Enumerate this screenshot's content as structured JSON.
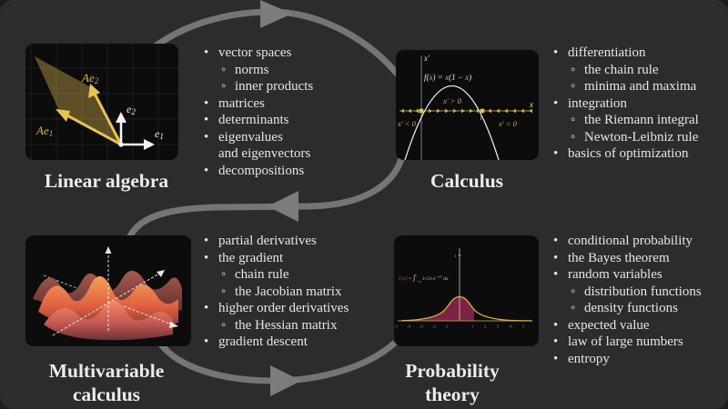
{
  "slide": {
    "background": "#2c2c2c",
    "outer_background": "#1c1c1c",
    "arrow_color": "#757575",
    "accent_gold": "#d9b24a",
    "shade_maroon": "#7c2342"
  },
  "glyphs": {
    "bullet": "•",
    "sub_bullet": "◦"
  },
  "sections": [
    {
      "id": "linear-algebra",
      "title": "Linear algebra",
      "items": [
        {
          "level": 1,
          "text": "vector spaces"
        },
        {
          "level": 2,
          "text": "norms"
        },
        {
          "level": 2,
          "text": "inner products"
        },
        {
          "level": 1,
          "text": "matrices"
        },
        {
          "level": 1,
          "text": "determinants"
        },
        {
          "level": 1,
          "text": "eigenvalues\nand eigenvectors"
        },
        {
          "level": 1,
          "text": "decompositions"
        }
      ]
    },
    {
      "id": "calculus",
      "title": "Calculus",
      "items": [
        {
          "level": 1,
          "text": "differentiation"
        },
        {
          "level": 2,
          "text": "the chain rule"
        },
        {
          "level": 2,
          "text": "minima and maxima"
        },
        {
          "level": 1,
          "text": "integration"
        },
        {
          "level": 2,
          "text": "the Riemann integral"
        },
        {
          "level": 2,
          "text": "Newton-Leibniz rule"
        },
        {
          "level": 1,
          "text": "basics of optimization"
        }
      ]
    },
    {
      "id": "multivariable-calculus",
      "title": "Multivariable\ncalculus",
      "items": [
        {
          "level": 1,
          "text": "partial derivatives"
        },
        {
          "level": 1,
          "text": "the gradient"
        },
        {
          "level": 2,
          "text": "chain rule"
        },
        {
          "level": 2,
          "text": "the Jacobian matrix"
        },
        {
          "level": 1,
          "text": "higher order derivatives"
        },
        {
          "level": 2,
          "text": "the Hessian matrix"
        },
        {
          "level": 1,
          "text": "gradient descent"
        }
      ]
    },
    {
      "id": "probability-theory",
      "title": "Probability\ntheory",
      "items": [
        {
          "level": 1,
          "text": "conditional probability"
        },
        {
          "level": 1,
          "text": "the Bayes theorem"
        },
        {
          "level": 1,
          "text": "random variables"
        },
        {
          "level": 2,
          "text": "distribution functions"
        },
        {
          "level": 2,
          "text": "density functions"
        },
        {
          "level": 1,
          "text": "expected value"
        },
        {
          "level": 1,
          "text": "law of large numbers"
        },
        {
          "level": 1,
          "text": "entropy"
        }
      ]
    }
  ],
  "figures": {
    "linear_algebra": {
      "ae2_parts": [
        {
          "t": "Ae",
          "c": "#d9b24a"
        },
        {
          "t": "2",
          "c": "#d9b24a",
          "size": 9,
          "dy": 2
        }
      ],
      "ae1_parts": [
        {
          "t": "Ae",
          "c": "#d9b24a"
        },
        {
          "t": "1",
          "c": "#d9b24a",
          "size": 9,
          "dy": 2
        }
      ],
      "e2_parts": [
        {
          "t": "e",
          "c": "#f2f2f2"
        },
        {
          "t": "2",
          "c": "#f2f2f2",
          "size": 9,
          "dy": 2
        }
      ],
      "e1_parts": [
        {
          "t": "e",
          "c": "#f2f2f2"
        },
        {
          "t": "1",
          "c": "#f2f2f2",
          "size": 9,
          "dy": 2
        }
      ]
    },
    "calculus": {
      "y_axis_label": "x′",
      "x_axis_label": "x",
      "formula_parts": [
        {
          "t": "f(",
          "c": "#e3e3e3"
        },
        {
          "t": "x",
          "c": "#d9b24a"
        },
        {
          "t": ") = ",
          "c": "#e3e3e3"
        },
        {
          "t": "x",
          "c": "#d9b24a"
        },
        {
          "t": "(1 − ",
          "c": "#e3e3e3"
        },
        {
          "t": "x",
          "c": "#d9b24a"
        },
        {
          "t": ")",
          "c": "#e3e3e3"
        }
      ],
      "region_positive": "x′ > 0",
      "region_negative_left": "x′ < 0",
      "region_negative_right": "x′ < 0",
      "unit_tick": "1"
    },
    "probability": {
      "formula_parts": [
        {
          "t": "F(x) ",
          "c": "#b5495f"
        },
        {
          "t": "= ",
          "c": "#cfcfcf"
        },
        {
          "t": "∫",
          "c": "#cfcfcf",
          "size": 8
        },
        {
          "t": "x",
          "c": "#cfcfcf",
          "size": 3.5,
          "dy": -4
        },
        {
          "t": "−∞",
          "c": "#cfcfcf",
          "size": 3.5,
          "dy": 7
        },
        {
          "t": " 1∕√2π ",
          "c": "#d9b24a",
          "size": 5,
          "dy": -3
        },
        {
          "t": "e",
          "c": "#c8c8c8",
          "size": 5.5
        },
        {
          "t": "−x²∕2",
          "c": "#c8c8c8",
          "size": 3.5,
          "dy": -2.5
        },
        {
          "t": " dx",
          "c": "#c8c8c8",
          "size": 5.5,
          "dy": 2.5
        }
      ],
      "x_ticks": [
        "-5",
        "-4",
        "-3",
        "-2",
        "-1",
        "1",
        "2",
        "3",
        "4",
        "5"
      ],
      "y_tick": "1"
    }
  }
}
